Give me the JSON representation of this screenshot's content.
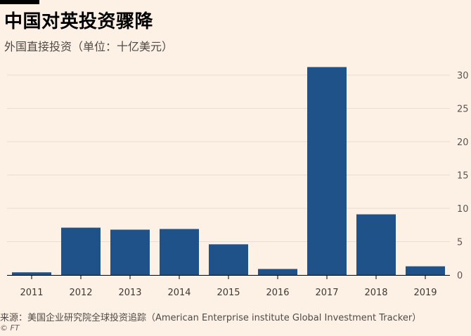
{
  "header": {
    "title": "中国对英投资骤降",
    "subtitle": "外国直接投资（单位：十亿美元）"
  },
  "footer": {
    "source": "来源：美国企业研究院全球投资追踪（American Enterprise institute Global Investment Tracker）",
    "credit": "© FT"
  },
  "colors": {
    "bar": "#1f5288",
    "background": "#fdf1e6",
    "grid": "#e8ddd4"
  },
  "chart_data": {
    "type": "bar",
    "title": "中国对英投资骤降",
    "subtitle": "外国直接投资（单位：十亿美元）",
    "categories": [
      "2011",
      "2012",
      "2013",
      "2014",
      "2015",
      "2016",
      "2017",
      "2018",
      "2019"
    ],
    "values": [
      0.4,
      7.1,
      6.8,
      6.9,
      4.6,
      0.9,
      31.2,
      9.1,
      1.3
    ],
    "ylim": [
      0,
      31
    ],
    "yticks": [
      "0",
      "5",
      "10",
      "15",
      "20",
      "25",
      "30"
    ],
    "y_axis_position": "right",
    "grid": true
  }
}
